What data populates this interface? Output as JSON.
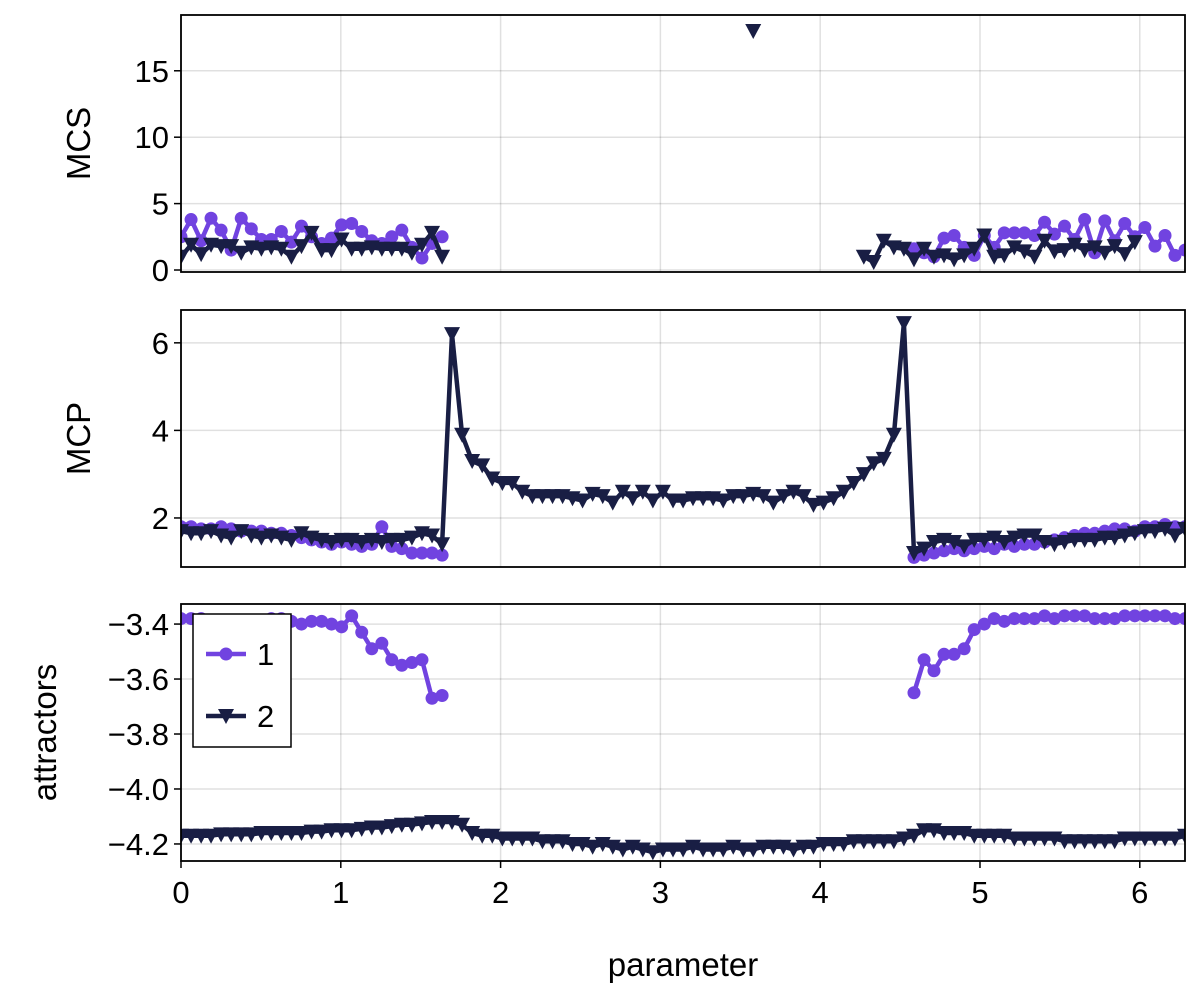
{
  "chart_data": [
    {
      "type": "line",
      "ylabel": "MCS",
      "ylim": [
        -0.15,
        19.2
      ],
      "yticks": [
        "0",
        "5",
        "10",
        "15"
      ],
      "ytick_values": [
        0,
        5,
        10,
        15
      ],
      "xlim": [
        0,
        6.283
      ],
      "grid": true,
      "series": [
        {
          "name": "1",
          "color": "#7143E0",
          "marker": "circle",
          "y": [
            2.5,
            3.8,
            2.2,
            3.9,
            3.0,
            1.5,
            3.9,
            3.1,
            2.3,
            2.3,
            2.9,
            2.1,
            3.3,
            2.5,
            2.0,
            2.4,
            3.4,
            3.5,
            2.9,
            2.2,
            2.0,
            2.5,
            3.0,
            1.7,
            0.9,
            2.0,
            2.5,
            null,
            null,
            null,
            null,
            null,
            null,
            null,
            null,
            null,
            null,
            null,
            null,
            null,
            null,
            null,
            null,
            null,
            null,
            null,
            null,
            null,
            null,
            null,
            null,
            null,
            null,
            null,
            null,
            null,
            null,
            null,
            null,
            null,
            null,
            null,
            null,
            null,
            null,
            null,
            null,
            null,
            null,
            null,
            null,
            null,
            null,
            1.6,
            1.3,
            1.0,
            2.4,
            2.6,
            1.7,
            1.1,
            2.6,
            1.7,
            2.8,
            2.8,
            2.8,
            2.6,
            3.6,
            2.7,
            3.3,
            2.3,
            3.8,
            1.3,
            3.7,
            2.2,
            3.5,
            2.5,
            3.2,
            1.8,
            2.6,
            1.1,
            1.5
          ]
        },
        {
          "name": "2",
          "color": "#191E44",
          "marker": "triangle-down",
          "y": [
            1.0,
            1.9,
            1.2,
            1.9,
            1.8,
            1.8,
            1.3,
            1.7,
            1.6,
            1.7,
            1.6,
            1.0,
            1.8,
            2.8,
            1.5,
            1.5,
            2.3,
            1.6,
            1.6,
            1.7,
            1.6,
            1.6,
            1.6,
            1.3,
            1.9,
            2.8,
            1.0,
            null,
            null,
            null,
            null,
            null,
            null,
            null,
            null,
            null,
            null,
            null,
            null,
            null,
            null,
            null,
            null,
            null,
            null,
            null,
            null,
            null,
            null,
            null,
            null,
            null,
            null,
            null,
            null,
            null,
            null,
            18,
            null,
            null,
            null,
            null,
            null,
            null,
            null,
            null,
            null,
            null,
            1.0,
            0.6,
            2.2,
            1.7,
            1.6,
            0.8,
            1.6,
            1.0,
            1.1,
            0.8,
            1.1,
            1.6,
            2.6,
            1.0,
            1.1,
            1.7,
            1.4,
            1.0,
            2.2,
            1.4,
            1.5,
            1.9,
            1.5,
            1.7,
            1.3,
            1.8,
            1.2,
            2.1
          ]
        }
      ]
    },
    {
      "type": "line",
      "ylabel": "MCP",
      "ylim": [
        0.88,
        6.75
      ],
      "yticks": [
        "2",
        "4",
        "6"
      ],
      "ytick_values": [
        2,
        4,
        6
      ],
      "xlim": [
        0,
        6.283
      ],
      "grid": true,
      "series": [
        {
          "name": "1",
          "color": "#7143E0",
          "marker": "circle",
          "y": [
            1.8,
            1.8,
            1.75,
            1.75,
            1.8,
            1.75,
            1.7,
            1.7,
            1.7,
            1.65,
            1.65,
            1.6,
            1.55,
            1.5,
            1.45,
            1.4,
            1.45,
            1.4,
            1.35,
            1.4,
            1.8,
            1.35,
            1.3,
            1.2,
            1.2,
            1.2,
            1.15,
            null,
            null,
            null,
            null,
            null,
            null,
            null,
            null,
            null,
            null,
            null,
            null,
            null,
            null,
            null,
            null,
            null,
            null,
            null,
            null,
            null,
            null,
            null,
            null,
            null,
            null,
            null,
            null,
            null,
            null,
            null,
            null,
            null,
            null,
            null,
            null,
            null,
            null,
            null,
            null,
            null,
            null,
            null,
            null,
            null,
            null,
            1.1,
            1.15,
            1.2,
            1.25,
            1.3,
            1.25,
            1.3,
            1.35,
            1.3,
            1.4,
            1.35,
            1.4,
            1.4,
            1.45,
            1.5,
            1.55,
            1.6,
            1.65,
            1.65,
            1.7,
            1.75,
            1.75,
            1.7,
            1.8,
            1.8,
            1.85,
            1.8,
            1.8
          ]
        },
        {
          "name": "2",
          "color": "#191E44",
          "marker": "triangle-down",
          "y": [
            1.7,
            1.65,
            1.65,
            1.7,
            1.6,
            1.55,
            1.7,
            1.6,
            1.55,
            1.6,
            1.55,
            1.5,
            1.65,
            1.55,
            1.5,
            1.45,
            1.5,
            1.5,
            1.45,
            1.5,
            1.45,
            1.5,
            1.5,
            1.55,
            1.65,
            1.6,
            1.4,
            6.2,
            3.9,
            3.3,
            3.2,
            2.9,
            2.8,
            2.8,
            2.6,
            2.5,
            2.5,
            2.5,
            2.5,
            2.45,
            2.4,
            2.55,
            2.5,
            2.35,
            2.6,
            2.45,
            2.6,
            2.4,
            2.6,
            2.4,
            2.4,
            2.45,
            2.45,
            2.45,
            2.4,
            2.5,
            2.5,
            2.55,
            2.5,
            2.35,
            2.5,
            2.6,
            2.5,
            2.3,
            2.35,
            2.45,
            2.6,
            2.8,
            3.0,
            3.25,
            3.35,
            3.9,
            6.45,
            1.2,
            1.3,
            1.45,
            1.5,
            1.45,
            1.35,
            1.5,
            1.5,
            1.55,
            1.45,
            1.55,
            1.6,
            1.6,
            1.45,
            1.4,
            1.45,
            1.5,
            1.5,
            1.5,
            1.55,
            1.55,
            1.6,
            1.65,
            1.7,
            1.7,
            1.75,
            1.6,
            1.75
          ]
        }
      ]
    },
    {
      "type": "line",
      "ylabel": "attractors",
      "xlabel": "parameter",
      "ylim": [
        -4.262,
        -3.327
      ],
      "yticks": [
        "−4.2",
        "−4.0",
        "−3.8",
        "−3.6",
        "−3.4"
      ],
      "ytick_values": [
        -4.2,
        -4.0,
        -3.8,
        -3.6,
        -3.4
      ],
      "xlim": [
        0,
        6.283
      ],
      "xticks": [
        "0",
        "1",
        "2",
        "3",
        "4",
        "5",
        "6"
      ],
      "xtick_values": [
        0,
        1,
        2,
        3,
        4,
        5,
        6
      ],
      "grid": true,
      "legend": {
        "placement": "top-left",
        "entries": [
          "1",
          "2"
        ]
      },
      "series": [
        {
          "name": "1",
          "color": "#7143E0",
          "marker": "circle",
          "y": [
            -3.38,
            -3.38,
            -3.38,
            -3.39,
            -3.39,
            -3.39,
            -3.4,
            -3.39,
            -3.39,
            -3.38,
            -3.38,
            -3.39,
            -3.4,
            -3.39,
            -3.39,
            -3.4,
            -3.41,
            -3.37,
            -3.43,
            -3.49,
            -3.47,
            -3.53,
            -3.55,
            -3.54,
            -3.53,
            -3.67,
            -3.66,
            null,
            null,
            null,
            null,
            null,
            null,
            null,
            null,
            null,
            null,
            null,
            null,
            null,
            null,
            null,
            null,
            null,
            null,
            null,
            null,
            null,
            null,
            null,
            null,
            null,
            null,
            null,
            null,
            null,
            null,
            null,
            null,
            null,
            null,
            null,
            null,
            null,
            null,
            null,
            null,
            null,
            null,
            null,
            null,
            null,
            null,
            -3.65,
            -3.53,
            -3.57,
            -3.51,
            -3.51,
            -3.49,
            -3.42,
            -3.4,
            -3.38,
            -3.39,
            -3.38,
            -3.38,
            -3.38,
            -3.37,
            -3.38,
            -3.37,
            -3.37,
            -3.37,
            -3.38,
            -3.38,
            -3.38,
            -3.37,
            -3.37,
            -3.37,
            -3.37,
            -3.37,
            -3.38,
            -3.38
          ]
        },
        {
          "name": "2",
          "color": "#191E44",
          "marker": "triangle-down",
          "y": [
            -4.17,
            -4.17,
            -4.17,
            -4.17,
            -4.165,
            -4.165,
            -4.165,
            -4.165,
            -4.16,
            -4.16,
            -4.16,
            -4.16,
            -4.16,
            -4.155,
            -4.155,
            -4.15,
            -4.15,
            -4.15,
            -4.145,
            -4.14,
            -4.14,
            -4.135,
            -4.13,
            -4.13,
            -4.125,
            -4.12,
            -4.12,
            -4.12,
            -4.13,
            -4.16,
            -4.17,
            -4.17,
            -4.18,
            -4.18,
            -4.18,
            -4.18,
            -4.19,
            -4.19,
            -4.19,
            -4.2,
            -4.2,
            -4.21,
            -4.2,
            -4.21,
            -4.22,
            -4.21,
            -4.22,
            -4.23,
            -4.22,
            -4.22,
            -4.22,
            -4.21,
            -4.22,
            -4.22,
            -4.22,
            -4.21,
            -4.22,
            -4.22,
            -4.21,
            -4.21,
            -4.21,
            -4.22,
            -4.21,
            -4.21,
            -4.2,
            -4.2,
            -4.2,
            -4.19,
            -4.19,
            -4.19,
            -4.19,
            -4.19,
            -4.18,
            -4.17,
            -4.15,
            -4.15,
            -4.16,
            -4.16,
            -4.16,
            -4.17,
            -4.17,
            -4.17,
            -4.17,
            -4.18,
            -4.18,
            -4.18,
            -4.18,
            -4.18,
            -4.19,
            -4.19,
            -4.19,
            -4.19,
            -4.19,
            -4.19,
            -4.18,
            -4.18,
            -4.18,
            -4.18,
            -4.18,
            -4.18,
            -4.17
          ]
        }
      ]
    }
  ],
  "x": [
    0,
    0.063,
    0.126,
    0.188,
    0.251,
    0.314,
    0.377,
    0.44,
    0.503,
    0.565,
    0.628,
    0.691,
    0.754,
    0.817,
    0.88,
    0.942,
    1.005,
    1.068,
    1.131,
    1.194,
    1.257,
    1.319,
    1.382,
    1.445,
    1.508,
    1.571,
    1.634,
    1.696,
    1.759,
    1.822,
    1.885,
    1.948,
    2.011,
    2.073,
    2.136,
    2.199,
    2.262,
    2.325,
    2.388,
    2.45,
    2.513,
    2.576,
    2.639,
    2.702,
    2.765,
    2.827,
    2.89,
    2.953,
    3.016,
    3.079,
    3.142,
    3.204,
    3.267,
    3.33,
    3.393,
    3.456,
    3.519,
    3.581,
    3.644,
    3.707,
    3.77,
    3.833,
    3.896,
    3.958,
    4.021,
    4.084,
    4.147,
    4.21,
    4.273,
    4.335,
    4.398,
    4.461,
    4.524,
    4.587,
    4.65,
    4.712,
    4.775,
    4.838,
    4.901,
    4.964,
    5.027,
    5.089,
    5.152,
    5.215,
    5.278,
    5.341,
    5.404,
    5.466,
    5.529,
    5.592,
    5.655,
    5.718,
    5.781,
    5.843,
    5.906,
    5.969,
    6.032,
    6.095,
    6.158,
    6.22,
    6.283
  ]
}
